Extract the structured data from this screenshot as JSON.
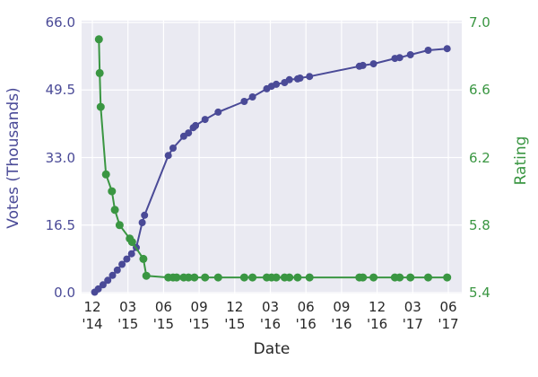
{
  "figure": {
    "background": "#ffffff",
    "plot_background": "#eaeaf2",
    "grid_color": "#ffffff"
  },
  "chart_data": {
    "type": "line",
    "title": "",
    "xlabel": "Date",
    "x_axis": {
      "unit": "months since Dec 2014",
      "tick_months": [
        0,
        3,
        6,
        9,
        12,
        15,
        18,
        21,
        24,
        27,
        30
      ],
      "tick_labels": [
        {
          "month": "12",
          "year": "'14"
        },
        {
          "month": "03",
          "year": "'15"
        },
        {
          "month": "06",
          "year": "'15"
        },
        {
          "month": "09",
          "year": "'15"
        },
        {
          "month": "12",
          "year": "'15"
        },
        {
          "month": "03",
          "year": "'16"
        },
        {
          "month": "06",
          "year": "'16"
        },
        {
          "month": "09",
          "year": "'16"
        },
        {
          "month": "12",
          "year": "'16"
        },
        {
          "month": "03",
          "year": "'17"
        },
        {
          "month": "06",
          "year": "'17"
        }
      ]
    },
    "y_left": {
      "label": "Votes (Thousands)",
      "color": "#4a4a97",
      "tick_labels": [
        "0.0",
        "16.5",
        "33.0",
        "49.5",
        "66.0"
      ],
      "tick_values": [
        0,
        16.5,
        33,
        49.5,
        66
      ],
      "range": [
        0,
        66
      ]
    },
    "y_right": {
      "label": "Rating",
      "color": "#3a9642",
      "tick_labels": [
        "5.4",
        "5.8",
        "6.2",
        "6.6",
        "7.0"
      ],
      "tick_values": [
        5.4,
        5.8,
        6.2,
        6.6,
        7.0
      ],
      "range": [
        5.4,
        7.0
      ]
    },
    "grid": true,
    "legend": "none",
    "series": [
      {
        "name": "Votes (Thousands)",
        "axis": "left",
        "color": "#4a4a97",
        "marker_radius": 4,
        "x": [
          0.2,
          0.5,
          0.9,
          1.3,
          1.7,
          2.1,
          2.5,
          2.9,
          3.3,
          3.7,
          4.2,
          4.4,
          6.4,
          6.8,
          7.7,
          8.1,
          8.5,
          8.7,
          9.5,
          10.6,
          12.8,
          13.5,
          14.7,
          15.1,
          15.5,
          16.2,
          16.6,
          17.3,
          17.5,
          18.3,
          22.5,
          22.8,
          23.7,
          25.5,
          25.9,
          26.8,
          28.3,
          29.9
        ],
        "values": [
          0.1,
          0.9,
          1.9,
          3.0,
          4.2,
          5.5,
          6.9,
          8.2,
          9.5,
          11.0,
          17.1,
          18.9,
          33.5,
          35.3,
          38.2,
          39.0,
          40.3,
          40.8,
          42.3,
          44.1,
          46.7,
          47.8,
          49.8,
          50.4,
          50.9,
          51.3,
          52.0,
          52.2,
          52.4,
          52.8,
          55.3,
          55.5,
          55.9,
          57.2,
          57.4,
          58.1,
          59.2,
          59.6
        ]
      },
      {
        "name": "Rating",
        "axis": "right",
        "color": "#3a9642",
        "marker_radius": 4.5,
        "x": [
          0.55,
          0.62,
          0.7,
          1.15,
          1.65,
          1.9,
          2.3,
          3.15,
          3.35,
          4.3,
          4.55,
          6.4,
          6.8,
          7.1,
          7.7,
          8.1,
          8.6,
          9.5,
          10.6,
          12.8,
          13.5,
          14.7,
          15.1,
          15.5,
          16.2,
          16.6,
          17.3,
          18.3,
          22.5,
          22.8,
          23.7,
          25.5,
          25.9,
          26.8,
          28.3,
          29.9
        ],
        "values": [
          6.9,
          6.7,
          6.5,
          6.1,
          6.0,
          5.89,
          5.8,
          5.72,
          5.7,
          5.6,
          5.5,
          5.49,
          5.49,
          5.49,
          5.49,
          5.49,
          5.49,
          5.49,
          5.49,
          5.49,
          5.49,
          5.49,
          5.49,
          5.49,
          5.49,
          5.49,
          5.49,
          5.49,
          5.49,
          5.49,
          5.49,
          5.49,
          5.49,
          5.49,
          5.49,
          5.49
        ]
      }
    ]
  }
}
